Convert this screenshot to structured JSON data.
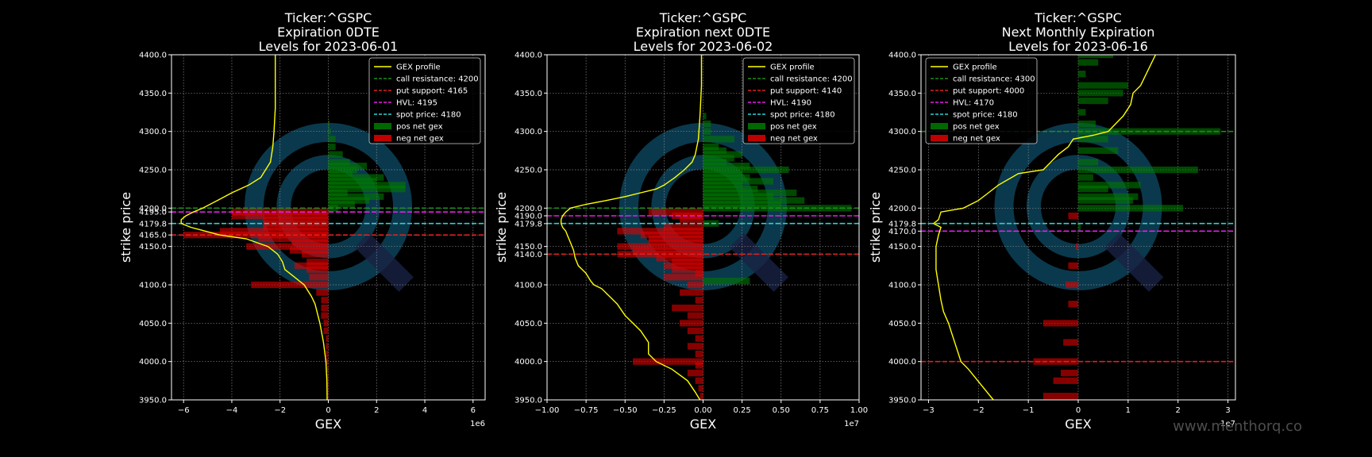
{
  "watermark": "www.menthorq.co",
  "colors": {
    "background": "#000000",
    "profile": "#ffff00",
    "call": "#1e8c1e",
    "put": "#e0201c",
    "hvl": "#e61ee6",
    "spot": "#2ad4d4",
    "pos_bar": "#007a00",
    "neg_bar": "#e00000",
    "logo": "#0b3f55"
  },
  "chart_data": [
    {
      "type": "bar",
      "orientation": "horizontal",
      "title": [
        "Ticker:^GSPC",
        "Expiration 0DTE",
        "Levels for 2023-06-01"
      ],
      "xlabel": "GEX",
      "ylabel": "strike price",
      "x_multiplier": "1e6",
      "xlim": [
        -6.5,
        6.5
      ],
      "ylim": [
        3950,
        4400
      ],
      "xticks": [
        -6,
        -4,
        -2,
        0,
        2,
        4,
        6
      ],
      "xtick_labels": [
        "−6",
        "−4",
        "−2",
        "0",
        "2",
        "4",
        "6"
      ],
      "yticks": [
        3950,
        4000,
        4050,
        4100,
        4150,
        4165,
        4179.8,
        4195,
        4200,
        4250,
        4300,
        4350,
        4400
      ],
      "ytick_labels": [
        "3950.0",
        "4000.0",
        "4050.0",
        "4100.0",
        "4150.0",
        "4165.0",
        "4179.8",
        "4195.0",
        "4200.0",
        "4250.0",
        "4300.0",
        "4350.0",
        "4400.0"
      ],
      "grid": true,
      "legend_position": "top-right",
      "legend": [
        "GEX profile",
        "call resistance: 4200",
        "put support: 4165",
        "HVL: 4195",
        "spot price: 4180",
        "pos net gex",
        "neg net gex"
      ],
      "levels": {
        "call": 4200,
        "put": 4165,
        "hvl": 4195,
        "spot": 4180
      },
      "strikes": [
        3950,
        3960,
        3970,
        3980,
        3990,
        4000,
        4010,
        4020,
        4030,
        4040,
        4050,
        4060,
        4070,
        4080,
        4090,
        4100,
        4110,
        4120,
        4125,
        4130,
        4140,
        4145,
        4150,
        4155,
        4160,
        4165,
        4170,
        4175,
        4180,
        4185,
        4190,
        4195,
        4200,
        4205,
        4210,
        4215,
        4220,
        4225,
        4230,
        4235,
        4240,
        4245,
        4250,
        4255,
        4260,
        4270,
        4280,
        4290,
        4300,
        4310
      ],
      "net_gex": [
        -0.05,
        -0.05,
        -0.05,
        -0.05,
        -0.05,
        -0.1,
        -0.1,
        -0.1,
        -0.1,
        -0.2,
        -0.2,
        -0.3,
        -0.3,
        -0.3,
        -0.5,
        -3.2,
        -0.8,
        -0.9,
        -1.4,
        -0.9,
        -1.1,
        -1.6,
        -3.4,
        -1.5,
        -2.9,
        -6.0,
        -4.5,
        -2.7,
        -2.7,
        -2.7,
        -4.0,
        -4.0,
        0.4,
        1.1,
        1.7,
        2.3,
        0.8,
        3.2,
        3.2,
        2.0,
        2.3,
        1.0,
        1.2,
        1.6,
        0.9,
        0.6,
        0.3,
        0.3,
        0.1,
        0.05
      ],
      "profile": {
        "y": [
          3950,
          3975,
          4000,
          4025,
          4050,
          4075,
          4085,
          4100,
          4110,
          4120,
          4130,
          4140,
          4150,
          4160,
          4165,
          4170,
          4175,
          4180,
          4185,
          4190,
          4195,
          4200,
          4210,
          4220,
          4230,
          4240,
          4250,
          4260,
          4280,
          4300,
          4330,
          4360,
          4400
        ],
        "x": [
          -0.05,
          -0.06,
          -0.1,
          -0.2,
          -0.35,
          -0.55,
          -0.7,
          -1.0,
          -1.4,
          -1.8,
          -1.9,
          -2.1,
          -2.5,
          -3.4,
          -4.5,
          -5.1,
          -5.7,
          -6.1,
          -6.1,
          -5.9,
          -5.6,
          -5.2,
          -4.6,
          -4.0,
          -3.3,
          -2.8,
          -2.6,
          -2.4,
          -2.3,
          -2.25,
          -2.2,
          -2.2,
          -2.2
        ]
      }
    },
    {
      "type": "bar",
      "orientation": "horizontal",
      "title": [
        "Ticker:^GSPC",
        "Expiration next 0DTE",
        "Levels for 2023-06-02"
      ],
      "xlabel": "GEX",
      "ylabel": "strike price",
      "x_multiplier": "1e7",
      "xlim": [
        -1.0,
        1.0
      ],
      "ylim": [
        3950,
        4400
      ],
      "xticks": [
        -1.0,
        -0.75,
        -0.5,
        -0.25,
        0,
        0.25,
        0.5,
        0.75,
        1.0
      ],
      "xtick_labels": [
        "−1.00",
        "−0.75",
        "−0.50",
        "−0.25",
        "0.00",
        "0.25",
        "0.50",
        "0.75",
        "1.00"
      ],
      "yticks": [
        3950,
        4000,
        4050,
        4100,
        4140,
        4150,
        4179.8,
        4190,
        4200,
        4250,
        4300,
        4350,
        4400
      ],
      "ytick_labels": [
        "3950.0",
        "4000.0",
        "4050.0",
        "4100.0",
        "4140.0",
        "4150.0",
        "4179.8",
        "4190.0",
        "4200.0",
        "4250.0",
        "4300.0",
        "4350.0",
        "4400.0"
      ],
      "grid": true,
      "legend_position": "top-right",
      "legend": [
        "GEX profile",
        "call resistance: 4200",
        "put support: 4140",
        "HVL: 4190",
        "spot price: 4180",
        "pos net gex",
        "neg net gex"
      ],
      "levels": {
        "call": 4200,
        "put": 4140,
        "hvl": 4190,
        "spot": 4180
      },
      "strikes": [
        3955,
        3965,
        3975,
        3985,
        3995,
        4000,
        4010,
        4020,
        4030,
        4040,
        4050,
        4060,
        4070,
        4080,
        4090,
        4100,
        4105,
        4110,
        4115,
        4120,
        4125,
        4130,
        4135,
        4140,
        4145,
        4150,
        4155,
        4160,
        4165,
        4170,
        4175,
        4180,
        4185,
        4190,
        4195,
        4200,
        4205,
        4210,
        4215,
        4220,
        4225,
        4230,
        4235,
        4240,
        4245,
        4250,
        4255,
        4260,
        4265,
        4270,
        4275,
        4280,
        4290,
        4300,
        4310,
        4320
      ],
      "net_gex": [
        -0.02,
        -0.03,
        -0.05,
        -0.1,
        -0.05,
        -0.45,
        -0.05,
        -0.1,
        -0.05,
        -0.1,
        -0.15,
        -0.1,
        -0.2,
        -0.05,
        -0.15,
        -0.1,
        0.3,
        -0.25,
        -0.05,
        -0.2,
        -0.25,
        -0.2,
        -0.3,
        -0.55,
        -0.45,
        -0.55,
        -0.35,
        -0.35,
        -0.4,
        -0.55,
        -0.25,
        0.1,
        -0.15,
        -0.2,
        -0.35,
        0.95,
        0.5,
        0.65,
        0.45,
        0.6,
        0.35,
        0.25,
        0.45,
        0.3,
        0.25,
        0.55,
        0.3,
        0.15,
        0.2,
        0.25,
        0.15,
        0.1,
        0.2,
        0.05,
        0.05,
        0.02
      ],
      "profile": {
        "y": [
          3950,
          3960,
          3975,
          3990,
          4000,
          4010,
          4025,
          4040,
          4050,
          4060,
          4075,
          4085,
          4095,
          4100,
          4105,
          4115,
          4125,
          4135,
          4145,
          4155,
          4165,
          4170,
          4175,
          4180,
          4185,
          4190,
          4195,
          4200,
          4205,
          4210,
          4215,
          4220,
          4225,
          4230,
          4240,
          4250,
          4260,
          4270,
          4290,
          4320,
          4360,
          4400
        ],
        "x": [
          -0.02,
          -0.05,
          -0.1,
          -0.2,
          -0.3,
          -0.35,
          -0.35,
          -0.4,
          -0.45,
          -0.5,
          -0.55,
          -0.6,
          -0.65,
          -0.7,
          -0.72,
          -0.75,
          -0.8,
          -0.82,
          -0.83,
          -0.85,
          -0.87,
          -0.88,
          -0.9,
          -0.91,
          -0.91,
          -0.9,
          -0.88,
          -0.85,
          -0.75,
          -0.62,
          -0.5,
          -0.4,
          -0.3,
          -0.25,
          -0.18,
          -0.12,
          -0.07,
          -0.05,
          -0.03,
          -0.02,
          -0.01,
          -0.01
        ]
      }
    },
    {
      "type": "bar",
      "orientation": "horizontal",
      "title": [
        "Ticker:^GSPC",
        "Next Monthly Expiration",
        "Levels for 2023-06-16"
      ],
      "xlabel": "GEX",
      "ylabel": "strike price",
      "x_multiplier": "1e7",
      "xlim": [
        -3.15,
        3.15
      ],
      "ylim": [
        3950,
        4400
      ],
      "xticks": [
        -3,
        -2,
        -1,
        0,
        1,
        2,
        3
      ],
      "xtick_labels": [
        "−3",
        "−2",
        "−1",
        "0",
        "1",
        "2",
        "3"
      ],
      "yticks": [
        3950,
        4000,
        4050,
        4100,
        4150,
        4170,
        4179.8,
        4200,
        4250,
        4300,
        4350,
        4400
      ],
      "ytick_labels": [
        "3950.0",
        "4000.0",
        "4050.0",
        "4100.0",
        "4150.0",
        "4170.0",
        "4179.8",
        "4200.0",
        "4250.0",
        "4300.0",
        "4350.0",
        "4400.0"
      ],
      "grid": true,
      "legend_position": "top-left",
      "legend": [
        "GEX profile",
        "call resistance: 4300",
        "put support: 4000",
        "HVL: 4170",
        "spot price: 4180",
        "pos net gex",
        "neg net gex"
      ],
      "levels": {
        "call": 4300,
        "put": 4000,
        "hvl": 4170,
        "spot": 4180
      },
      "strikes": [
        3955,
        3975,
        3985,
        4000,
        4025,
        4050,
        4075,
        4100,
        4125,
        4150,
        4175,
        4190,
        4200,
        4210,
        4215,
        4225,
        4230,
        4240,
        4250,
        4260,
        4275,
        4290,
        4300,
        4310,
        4325,
        4340,
        4350,
        4360,
        4375,
        4390,
        4400
      ],
      "net_gex": [
        -0.7,
        -0.5,
        -0.35,
        -0.9,
        -0.3,
        -0.7,
        -0.2,
        -0.25,
        -0.2,
        -0.05,
        0.05,
        -0.2,
        2.1,
        1.1,
        1.2,
        0.6,
        1.25,
        0.3,
        2.4,
        0.4,
        0.8,
        0.6,
        2.85,
        0.35,
        0.15,
        0.6,
        0.9,
        1.0,
        0.15,
        0.4,
        0.7
      ],
      "profile": {
        "y": [
          3950,
          3970,
          3990,
          4000,
          4020,
          4040,
          4050,
          4065,
          4080,
          4100,
          4120,
          4140,
          4150,
          4165,
          4175,
          4180,
          4185,
          4195,
          4200,
          4210,
          4220,
          4230,
          4245,
          4250,
          4260,
          4270,
          4280,
          4290,
          4295,
          4300,
          4310,
          4320,
          4335,
          4350,
          4360,
          4380,
          4400
        ],
        "x": [
          -1.7,
          -1.95,
          -2.2,
          -2.35,
          -2.45,
          -2.55,
          -2.6,
          -2.7,
          -2.75,
          -2.8,
          -2.85,
          -2.85,
          -2.85,
          -2.8,
          -2.75,
          -2.9,
          -2.8,
          -2.75,
          -2.3,
          -2.0,
          -1.8,
          -1.6,
          -1.2,
          -0.7,
          -0.55,
          -0.4,
          -0.2,
          -0.1,
          0.3,
          0.6,
          0.75,
          0.9,
          1.05,
          1.1,
          1.25,
          1.4,
          1.55
        ]
      }
    }
  ]
}
